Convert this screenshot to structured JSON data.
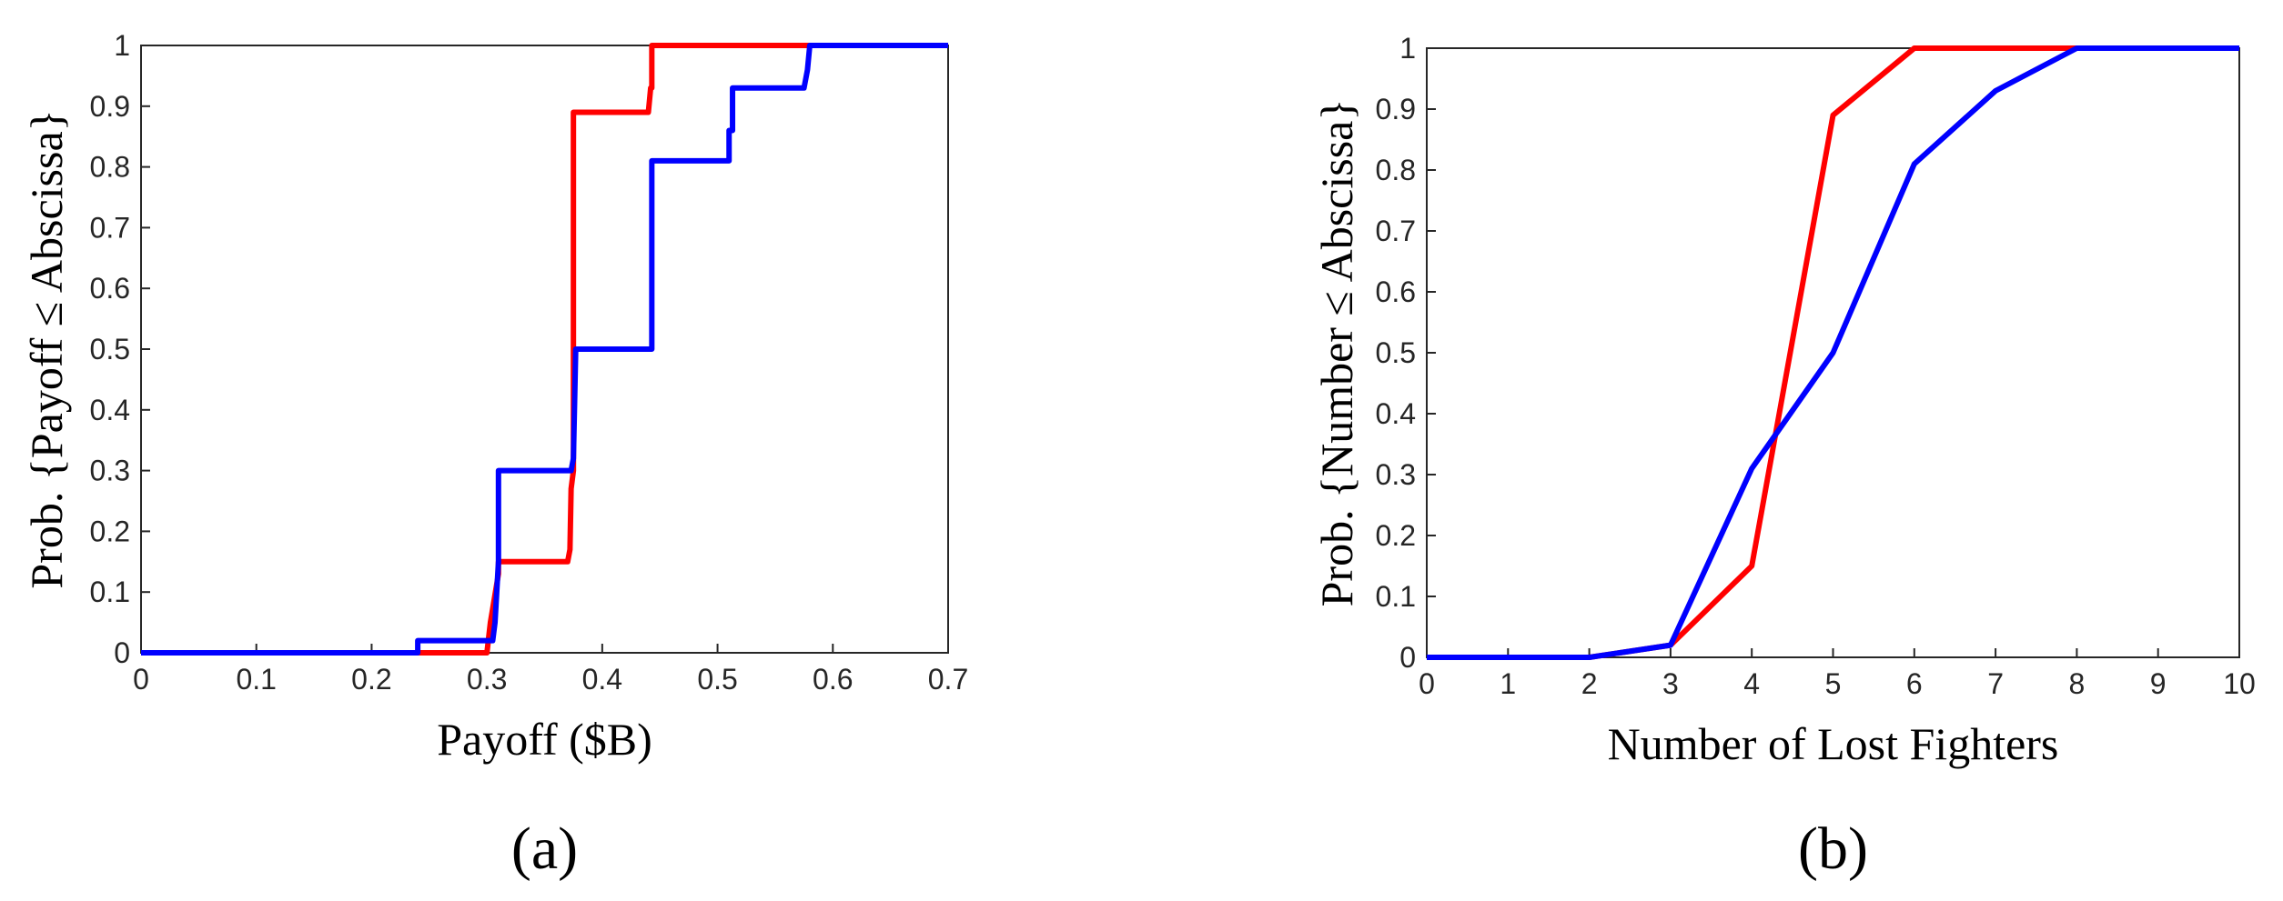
{
  "chart_data": [
    {
      "type": "line",
      "label": "(a)",
      "xlabel": "Payoff ($B)",
      "ylabel": "Prob. {Payoff ≤ Abscissa}",
      "xlim": [
        0,
        0.7
      ],
      "xticks": [
        0,
        0.1,
        0.2,
        0.3,
        0.4,
        0.5,
        0.6,
        0.7
      ],
      "ylim": [
        0,
        1
      ],
      "yticks": [
        0,
        0.1,
        0.2,
        0.3,
        0.4,
        0.5,
        0.6,
        0.7,
        0.8,
        0.9,
        1
      ],
      "series": [
        {
          "color": "#ff0000",
          "x": [
            0,
            0.3,
            0.303,
            0.31,
            0.31,
            0.37,
            0.372,
            0.373,
            0.375,
            0.375,
            0.44,
            0.442,
            0.443,
            0.443,
            0.7
          ],
          "values": [
            0,
            0,
            0.05,
            0.13,
            0.15,
            0.15,
            0.17,
            0.27,
            0.3,
            0.89,
            0.89,
            0.93,
            0.93,
            1,
            1
          ]
        },
        {
          "color": "#0000ff",
          "x": [
            0,
            0.24,
            0.24,
            0.305,
            0.307,
            0.31,
            0.31,
            0.373,
            0.375,
            0.377,
            0.443,
            0.443,
            0.51,
            0.51,
            0.513,
            0.513,
            0.575,
            0.577,
            0.578,
            0.58,
            0.7
          ],
          "values": [
            0,
            0,
            0.02,
            0.02,
            0.05,
            0.15,
            0.3,
            0.3,
            0.32,
            0.5,
            0.5,
            0.81,
            0.81,
            0.86,
            0.86,
            0.93,
            0.93,
            0.95,
            0.96,
            1,
            1
          ]
        }
      ]
    },
    {
      "type": "line",
      "label": "(b)",
      "xlabel": "Number of Lost Fighters",
      "ylabel": "Prob. {Number ≤ Abscissa}",
      "x": [
        0,
        1,
        2,
        3,
        4,
        5,
        6,
        7,
        8,
        9,
        10
      ],
      "xlim": [
        0,
        10
      ],
      "xticks": [
        0,
        1,
        2,
        3,
        4,
        5,
        6,
        7,
        8,
        9,
        10
      ],
      "ylim": [
        0,
        1
      ],
      "yticks": [
        0,
        0.1,
        0.2,
        0.3,
        0.4,
        0.5,
        0.6,
        0.7,
        0.8,
        0.9,
        1
      ],
      "series": [
        {
          "color": "#ff0000",
          "values": [
            0,
            0,
            0,
            0.02,
            0.15,
            0.89,
            1,
            1,
            1,
            1,
            1
          ]
        },
        {
          "color": "#0000ff",
          "values": [
            0,
            0,
            0,
            0.02,
            0.31,
            0.5,
            0.81,
            0.93,
            1,
            1,
            1
          ]
        }
      ]
    }
  ]
}
